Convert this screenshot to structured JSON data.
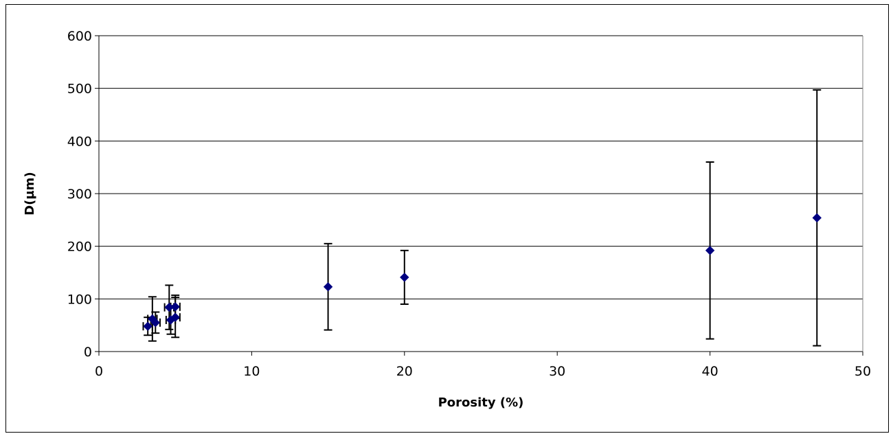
{
  "chart_data": {
    "type": "scatter",
    "title": "",
    "xlabel": "Porosity (%)",
    "ylabel": "D(µm)",
    "xlim": [
      0,
      50
    ],
    "ylim": [
      0,
      600
    ],
    "x_ticks": [
      0,
      10,
      20,
      30,
      40,
      50
    ],
    "y_ticks": [
      0,
      100,
      200,
      300,
      400,
      500,
      600
    ],
    "grid": "horizontal",
    "legend": "none",
    "marker": "diamond",
    "colors": {
      "marker": "#000080",
      "error_bar": "#000000",
      "gridline": "#000000",
      "frame": "#000000"
    },
    "series": [
      {
        "points": [
          {
            "x": 3.2,
            "y": 48,
            "y_err": 17,
            "x_err": 0.3
          },
          {
            "x": 3.5,
            "y": 62,
            "y_err": 42,
            "x_err": 0.3
          },
          {
            "x": 3.7,
            "y": 55,
            "y_err": 20,
            "x_err": 0.3
          },
          {
            "x": 4.6,
            "y": 84,
            "y_err": 42,
            "x_err": 0.3
          },
          {
            "x": 4.7,
            "y": 60,
            "y_err": 27,
            "x_err": 0.3
          },
          {
            "x": 5.0,
            "y": 85,
            "y_err": 22,
            "x_err": 0.3
          },
          {
            "x": 5.0,
            "y": 65,
            "y_err": 38,
            "x_err": 0.3
          },
          {
            "x": 15,
            "y": 123,
            "y_err": 82
          },
          {
            "x": 20,
            "y": 141,
            "y_err": 51
          },
          {
            "x": 40,
            "y": 192,
            "y_err": 168
          },
          {
            "x": 47,
            "y": 254,
            "y_err": 243
          }
        ]
      }
    ]
  }
}
